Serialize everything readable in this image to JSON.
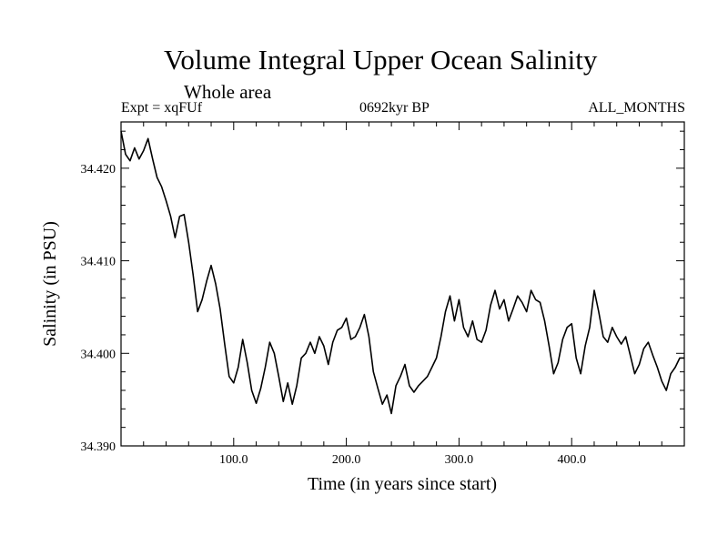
{
  "title": "Volume Integral Upper Ocean Salinity",
  "subtitle": "Whole area",
  "experiment_label": "Expt = xqFUf",
  "period_label": "0692kyr BP",
  "months_label": "ALL_MONTHS",
  "line_color": "#000000",
  "chart_data": {
    "type": "line",
    "title": "Volume Integral Upper Ocean Salinity",
    "subtitle": "Whole area",
    "xlabel": "Time (in years since start)",
    "ylabel": "Salinity (in PSU)",
    "xlim": [
      0,
      500
    ],
    "ylim": [
      34.39,
      34.425
    ],
    "x_ticks": [
      100,
      200,
      300,
      400
    ],
    "x_tick_labels": [
      "100.0",
      "200.0",
      "300.0",
      "400.0"
    ],
    "y_ticks": [
      34.39,
      34.4,
      34.41,
      34.42
    ],
    "y_tick_labels": [
      "34.390",
      "34.400",
      "34.410",
      "34.420"
    ],
    "grid": false,
    "series": [
      {
        "name": "Salinity",
        "x": [
          0,
          4,
          8,
          12,
          16,
          20,
          24,
          28,
          32,
          36,
          40,
          44,
          48,
          52,
          56,
          60,
          64,
          68,
          72,
          76,
          80,
          84,
          88,
          92,
          96,
          100,
          104,
          108,
          112,
          116,
          120,
          124,
          128,
          132,
          136,
          140,
          144,
          148,
          152,
          156,
          160,
          164,
          168,
          172,
          176,
          180,
          184,
          188,
          192,
          196,
          200,
          204,
          208,
          212,
          216,
          220,
          224,
          228,
          232,
          236,
          240,
          244,
          248,
          252,
          256,
          260,
          264,
          268,
          272,
          276,
          280,
          284,
          288,
          292,
          296,
          300,
          304,
          308,
          312,
          316,
          320,
          324,
          328,
          332,
          336,
          340,
          344,
          348,
          352,
          356,
          360,
          364,
          368,
          372,
          376,
          380,
          384,
          388,
          392,
          396,
          400,
          404,
          408,
          412,
          416,
          420,
          424,
          428,
          432,
          436,
          440,
          444,
          448,
          452,
          456,
          460,
          464,
          468,
          472,
          476,
          480,
          484,
          488,
          492,
          496,
          500
        ],
        "values": [
          34.424,
          34.4215,
          34.4208,
          34.4222,
          34.421,
          34.4219,
          34.4232,
          34.421,
          34.419,
          34.418,
          34.4165,
          34.4148,
          34.4125,
          34.4148,
          34.415,
          34.412,
          34.4085,
          34.4045,
          34.4058,
          34.4078,
          34.4095,
          34.4075,
          34.4048,
          34.401,
          34.3975,
          34.3968,
          34.3985,
          34.4015,
          34.399,
          34.396,
          34.3946,
          34.3962,
          34.3985,
          34.4012,
          34.4,
          34.3975,
          34.3948,
          34.3968,
          34.3945,
          34.3965,
          34.3995,
          34.4,
          34.4012,
          34.4,
          34.4018,
          34.4008,
          34.3988,
          34.4012,
          34.4025,
          34.4028,
          34.4038,
          34.4015,
          34.4018,
          34.4028,
          34.4042,
          34.4018,
          34.398,
          34.3962,
          34.3945,
          34.3955,
          34.3935,
          34.3965,
          34.3975,
          34.3988,
          34.3965,
          34.3958,
          34.3965,
          34.397,
          34.3975,
          34.3985,
          34.3995,
          34.4018,
          34.4045,
          34.4062,
          34.4035,
          34.4058,
          34.4028,
          34.4018,
          34.4035,
          34.4015,
          34.4012,
          34.4025,
          34.4052,
          34.4068,
          34.4048,
          34.4058,
          34.4035,
          34.4048,
          34.4062,
          34.4055,
          34.4045,
          34.4068,
          34.4058,
          34.4055,
          34.4035,
          34.4008,
          34.3978,
          34.399,
          34.4015,
          34.4028,
          34.4032,
          34.3995,
          34.3978,
          34.4008,
          34.4028,
          34.4068,
          34.4045,
          34.4018,
          34.4012,
          34.4028,
          34.4018,
          34.401,
          34.4018,
          34.3998,
          34.3978,
          34.3988,
          34.4005,
          34.4012,
          34.3998,
          34.3985,
          34.397,
          34.396,
          34.3978,
          34.3985,
          34.3995,
          34.3995
        ]
      }
    ]
  }
}
